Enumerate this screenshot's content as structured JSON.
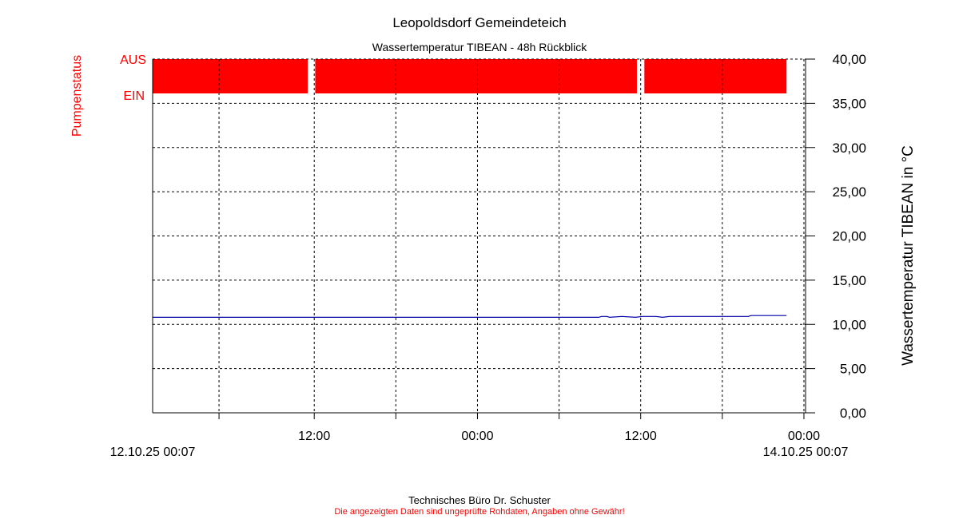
{
  "title": "Leopoldsdorf Gemeindeteich",
  "subtitle": "Wassertemperatur TIBEAN - 48h Rückblick",
  "footer": {
    "company": "Technisches Büro Dr. Schuster",
    "disclaimer": "Die angezeigten Daten sind ungeprüfte Rohdaten, Angaben ohne Gewähr!"
  },
  "colors": {
    "pump": "#ff0000",
    "temperature": "#0000aa",
    "grid": "#000000"
  },
  "chart_data": {
    "type": "line",
    "title": "Leopoldsdorf Gemeindeteich",
    "subtitle": "Wassertemperatur TIBEAN - 48h Rückblick",
    "xlabel": "",
    "ylabel": "Wassertemperatur TIBEAN in °C",
    "y2label": "Pumpenstatus",
    "x_unit": "hours since 12.10.25 00:07",
    "xlim": [
      0,
      48
    ],
    "ylim": [
      0,
      40
    ],
    "grid": true,
    "x_ticks": [
      {
        "x": 4.88,
        "label": ""
      },
      {
        "x": 11.88,
        "label": "12:00"
      },
      {
        "x": 17.88,
        "label": ""
      },
      {
        "x": 23.88,
        "label": "00:00"
      },
      {
        "x": 29.88,
        "label": ""
      },
      {
        "x": 35.88,
        "label": "12:00"
      },
      {
        "x": 41.88,
        "label": ""
      },
      {
        "x": 47.88,
        "label": "00:00"
      }
    ],
    "x_range_labels": {
      "start": "12.10.25 00:07",
      "end": "14.10.25 00:07"
    },
    "y_ticks": [
      "0,00",
      "5,00",
      "10,00",
      "15,00",
      "20,00",
      "25,00",
      "30,00",
      "35,00",
      "40,00"
    ],
    "pump_status_labels": {
      "off": "AUS",
      "on": "EIN"
    },
    "pump_status_bars": [
      {
        "start": 0.0,
        "end": 11.4
      },
      {
        "start": 11.95,
        "end": 35.6
      },
      {
        "start": 36.15,
        "end": 46.6
      }
    ],
    "series": [
      {
        "type": "line",
        "x": [
          0,
          6,
          12,
          18,
          24,
          30,
          32.8,
          33.0,
          33.4,
          33.6,
          34.5,
          35.5,
          36.0,
          37.0,
          37.5,
          38.0,
          40.0,
          42.0,
          43.8,
          44.0,
          46.6
        ],
        "y": [
          10.8,
          10.8,
          10.8,
          10.8,
          10.8,
          10.8,
          10.8,
          10.9,
          10.9,
          10.8,
          10.9,
          10.8,
          10.9,
          10.9,
          10.8,
          10.9,
          10.9,
          10.9,
          10.9,
          11.0,
          11.0
        ]
      }
    ]
  }
}
